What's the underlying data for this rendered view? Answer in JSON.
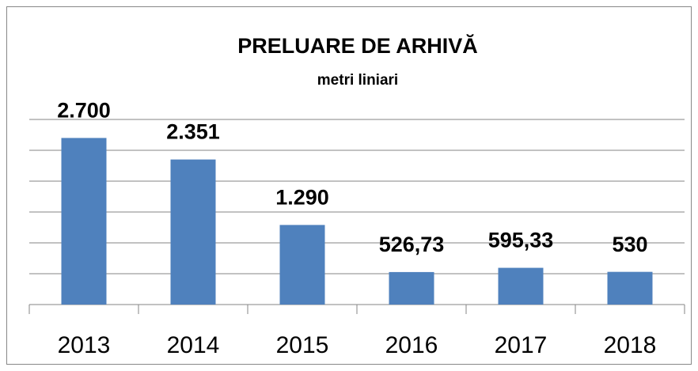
{
  "chart_data": {
    "type": "bar",
    "title": "PRELUARE DE ARHIVĂ",
    "subtitle": "metri liniari",
    "categories": [
      "2013",
      "2014",
      "2015",
      "2016",
      "2017",
      "2018"
    ],
    "values": [
      2700,
      2351,
      1290,
      526.73,
      595.33,
      530
    ],
    "value_labels": [
      "2.700",
      "2.351",
      "1.290",
      "526,73",
      "595,33",
      "530"
    ],
    "color": "#4f81bd",
    "ylim": [
      0,
      3000
    ],
    "yticks": [
      0,
      500,
      1000,
      1500,
      2000,
      2500,
      3000
    ],
    "grid": true
  }
}
